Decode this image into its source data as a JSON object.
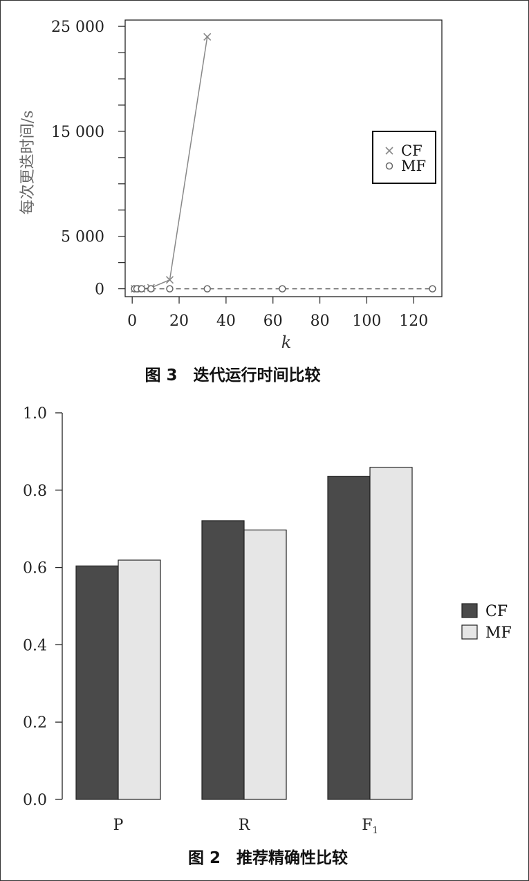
{
  "chart_data": [
    {
      "type": "line",
      "caption": "图 3　迭代运行时间比较",
      "xlabel": "k",
      "ylabel": "每次更迭时间/s",
      "xlim": [
        -3,
        132
      ],
      "ylim": [
        -750,
        25600
      ],
      "x_ticks": [
        0,
        20,
        40,
        60,
        80,
        100,
        120
      ],
      "x_tick_labels": [
        "0",
        "20",
        "40",
        "60",
        "80",
        "100",
        "120"
      ],
      "y_ticks": [
        0,
        5000,
        15000,
        25000
      ],
      "y_tick_labels": [
        "0",
        "5 000",
        "15 000",
        "25 000"
      ],
      "y_minor_ticks": [
        2500,
        7500,
        10000,
        12500,
        17500,
        20000,
        22500
      ],
      "legend_position": "right",
      "series": [
        {
          "name": "CF",
          "marker": "x",
          "line": "solid",
          "color": "#888888",
          "x": [
            1,
            2,
            4,
            8,
            16,
            32
          ],
          "y": [
            0,
            0,
            0,
            100,
            850,
            24000
          ]
        },
        {
          "name": "MF",
          "marker": "o",
          "line": "dashed",
          "color": "#666666",
          "x": [
            1,
            2,
            4,
            8,
            16,
            32,
            64,
            128
          ],
          "y": [
            0,
            0,
            0,
            0,
            0,
            0,
            0,
            0
          ]
        }
      ]
    },
    {
      "type": "bar",
      "caption": "图 2　推荐精确性比较",
      "categories": [
        "P",
        "R",
        "F1"
      ],
      "ylim": [
        0,
        1.0
      ],
      "y_ticks": [
        0.0,
        0.2,
        0.4,
        0.6,
        0.8,
        1.0
      ],
      "y_tick_labels": [
        "0.0",
        "0.2",
        "0.4",
        "0.6",
        "0.8",
        "1.0"
      ],
      "legend_position": "right",
      "series": [
        {
          "name": "CF",
          "color": "#4a4a4a",
          "values": [
            0.604,
            0.721,
            0.836
          ]
        },
        {
          "name": "MF",
          "color": "#e6e6e6",
          "values": [
            0.619,
            0.697,
            0.859
          ]
        }
      ]
    }
  ]
}
